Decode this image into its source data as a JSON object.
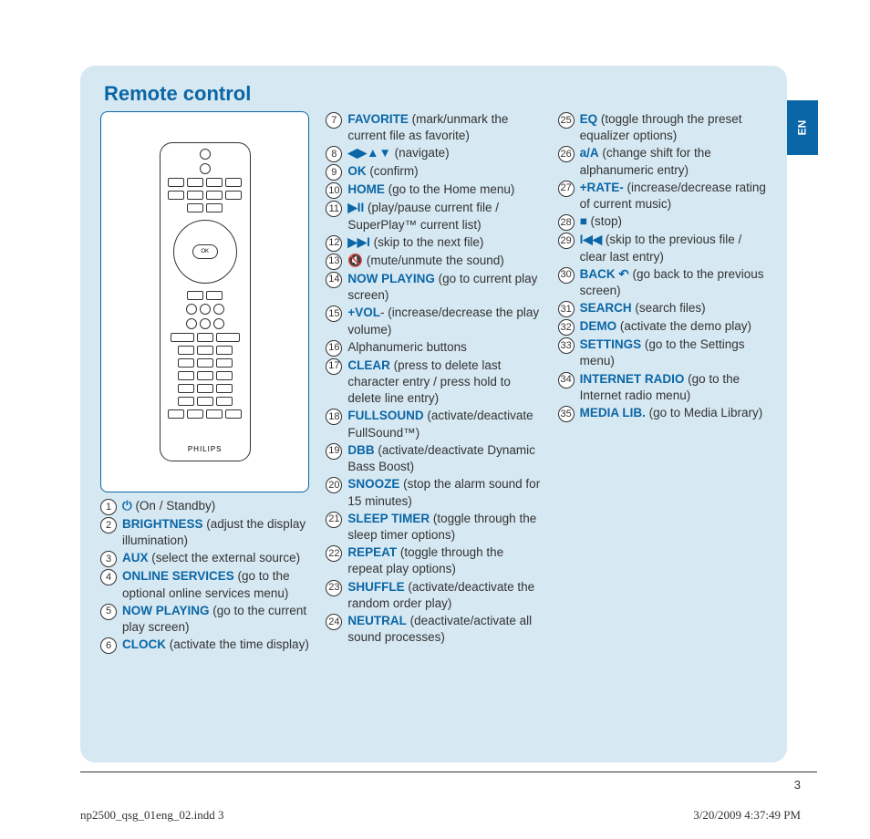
{
  "colors": {
    "accent": "#0a66a6",
    "panel_bg": "#d6e8f2",
    "body_text": "#333333"
  },
  "lang_tab": "EN",
  "title": "Remote control",
  "remote_brand": "PHILIPS",
  "page_number": "3",
  "footer_left": "np2500_qsg_01eng_02.indd   3",
  "footer_right": "3/20/2009   4:37:49 PM",
  "col1_items": [
    {
      "n": "1",
      "sym": "⏻",
      "label": "",
      "desc": " (On / Standby)"
    },
    {
      "n": "2",
      "label": "BRIGHTNESS",
      "desc": " (adjust the display illumination)"
    },
    {
      "n": "3",
      "label": "AUX",
      "desc": " (select the external source)"
    },
    {
      "n": "4",
      "label": "ONLINE SERVICES",
      "desc": " (go to the optional online services menu)"
    },
    {
      "n": "5",
      "label": "NOW PLAYING",
      "desc": " (go to the current play screen)"
    },
    {
      "n": "6",
      "label": "CLOCK",
      "desc": " (activate the time display)"
    }
  ],
  "col2_items": [
    {
      "n": "7",
      "label": "FAVORITE",
      "desc": " (mark/unmark the current file as favorite)"
    },
    {
      "n": "8",
      "sym": "◀▶▲▼",
      "label": "",
      "desc": " (navigate)"
    },
    {
      "n": "9",
      "label": "OK",
      "desc": " (confirm)"
    },
    {
      "n": "10",
      "label": "HOME",
      "desc": " (go to the Home menu)"
    },
    {
      "n": "11",
      "sym": "▶II",
      "label": "",
      "desc": " (play/pause current file / SuperPlay™ current list)"
    },
    {
      "n": "12",
      "sym": "▶▶I",
      "label": "",
      "desc": " (skip to the next file)"
    },
    {
      "n": "13",
      "sym": "🔇",
      "label": "",
      "desc": " (mute/unmute the sound)"
    },
    {
      "n": "14",
      "label": "NOW PLAYING",
      "desc": " (go to current play screen)"
    },
    {
      "n": "15",
      "label": "+VOL",
      "suffix": "-",
      "desc": " (increase/decrease the play volume)"
    },
    {
      "n": "16",
      "label": "",
      "desc": "Alphanumeric buttons"
    },
    {
      "n": "17",
      "label": "CLEAR",
      "desc": " (press to delete last character entry / press hold to delete line entry)"
    },
    {
      "n": "18",
      "label": "FULLSOUND",
      "desc": " (activate/deactivate FullSound™)"
    },
    {
      "n": "19",
      "label": "DBB",
      "desc": " (activate/deactivate Dynamic Bass Boost)"
    },
    {
      "n": "20",
      "label": "SNOOZE",
      "desc": " (stop the alarm sound for 15 minutes)"
    },
    {
      "n": "21",
      "label": "SLEEP TIMER",
      "desc": " (toggle through the sleep timer options)"
    },
    {
      "n": "22",
      "label": "REPEAT",
      "desc": " (toggle through the repeat play options)"
    },
    {
      "n": "23",
      "label": "SHUFFLE",
      "desc": " (activate/deactivate the random order play)"
    },
    {
      "n": "24",
      "label": "NEUTRAL",
      "desc": " (deactivate/activate all sound processes)"
    }
  ],
  "col3_items": [
    {
      "n": "25",
      "label": "EQ",
      "desc": " (toggle through the preset equalizer options)"
    },
    {
      "n": "26",
      "label": "a/A",
      "desc": " (change shift for the alphanumeric entry)"
    },
    {
      "n": "27",
      "label": "+RATE-",
      "desc": " (increase/decrease rating of current music)"
    },
    {
      "n": "28",
      "sym": "■",
      "label": "",
      "desc": " (stop)"
    },
    {
      "n": "29",
      "sym": "I◀◀",
      "label": "",
      "desc": " (skip to the previous file / clear last entry)"
    },
    {
      "n": "30",
      "label": "BACK ",
      "sym_after": "↶",
      "desc": " (go back to the previous screen)"
    },
    {
      "n": "31",
      "label": "SEARCH",
      "desc": " (search files)"
    },
    {
      "n": "32",
      "label": "DEMO",
      "desc": " (activate the demo play)"
    },
    {
      "n": "33",
      "label": "SETTINGS",
      "desc": " (go to the Settings menu)"
    },
    {
      "n": "34",
      "label": "INTERNET RADIO",
      "desc": " (go to the Internet radio menu)"
    },
    {
      "n": "35",
      "label": "MEDIA LIB.",
      "desc": " (go to Media Library)"
    }
  ]
}
